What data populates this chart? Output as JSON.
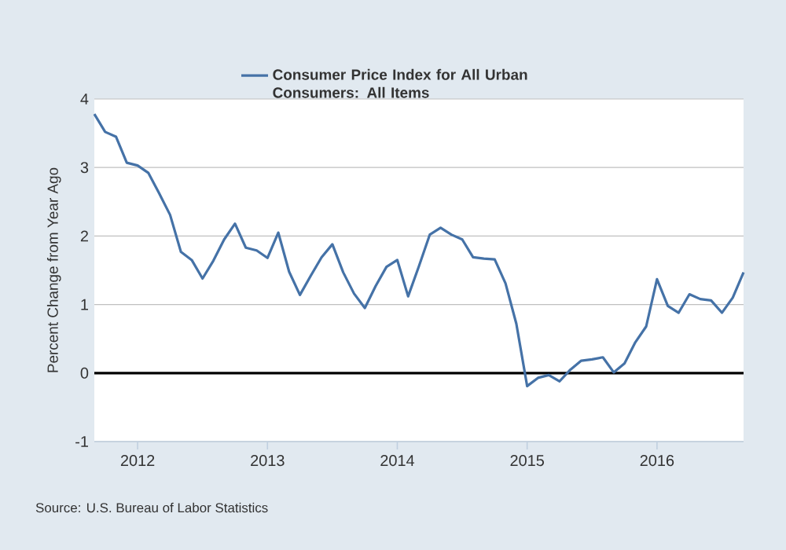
{
  "chart_data": {
    "type": "line",
    "title": null,
    "ylabel": "Percent Change from Year Ago",
    "annotations": [
      "Source: U.S. Bureau of Labor Statistics"
    ],
    "x": [
      "2011-09",
      "2011-10",
      "2011-11",
      "2011-12",
      "2012-01",
      "2012-02",
      "2012-03",
      "2012-04",
      "2012-05",
      "2012-06",
      "2012-07",
      "2012-08",
      "2012-09",
      "2012-10",
      "2012-11",
      "2012-12",
      "2013-01",
      "2013-02",
      "2013-03",
      "2013-04",
      "2013-05",
      "2013-06",
      "2013-07",
      "2013-08",
      "2013-09",
      "2013-10",
      "2013-11",
      "2013-12",
      "2014-01",
      "2014-02",
      "2014-03",
      "2014-04",
      "2014-05",
      "2014-06",
      "2014-07",
      "2014-08",
      "2014-09",
      "2014-10",
      "2014-11",
      "2014-12",
      "2015-01",
      "2015-02",
      "2015-03",
      "2015-04",
      "2015-05",
      "2015-06",
      "2015-07",
      "2015-08",
      "2015-09",
      "2015-10",
      "2015-11",
      "2015-12",
      "2016-01",
      "2016-02",
      "2016-03",
      "2016-04",
      "2016-05",
      "2016-06",
      "2016-07",
      "2016-08",
      "2016-09"
    ],
    "series": [
      {
        "name": "Consumer Price Index for All Urban Consumers: All Items",
        "color": "#4572a7",
        "values": [
          3.78,
          3.52,
          3.45,
          3.07,
          3.03,
          2.92,
          2.62,
          2.31,
          1.77,
          1.65,
          1.38,
          1.64,
          1.95,
          2.18,
          1.83,
          1.79,
          1.68,
          2.05,
          1.48,
          1.14,
          1.42,
          1.69,
          1.88,
          1.47,
          1.16,
          0.95,
          1.27,
          1.55,
          1.65,
          1.12,
          1.56,
          2.02,
          2.12,
          2.02,
          1.95,
          1.69,
          1.67,
          1.66,
          1.31,
          0.72,
          -0.19,
          -0.07,
          -0.03,
          -0.12,
          0.05,
          0.18,
          0.2,
          0.23,
          0.01,
          0.14,
          0.45,
          0.68,
          1.37,
          0.98,
          0.88,
          1.15,
          1.08,
          1.06,
          0.88,
          1.1,
          1.47
        ]
      }
    ],
    "xlim": [
      "2011-09",
      "2016-09"
    ],
    "xticks": [
      {
        "value": "2012-01",
        "label": "2012"
      },
      {
        "value": "2013-01",
        "label": "2013"
      },
      {
        "value": "2014-01",
        "label": "2014"
      },
      {
        "value": "2015-01",
        "label": "2015"
      },
      {
        "value": "2016-01",
        "label": "2016"
      }
    ],
    "ylim": [
      -1,
      4
    ],
    "yticks": [
      -1,
      0,
      1,
      2,
      3,
      4
    ],
    "grid": "y",
    "legend": "top",
    "marker": "none",
    "line_style": "solid",
    "ref_lines": [
      {
        "axis": "y",
        "value": 0,
        "color": "#000000"
      }
    ]
  }
}
